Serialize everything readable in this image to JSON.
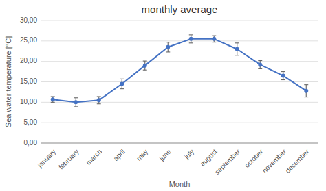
{
  "chart_data": {
    "type": "line",
    "title": "monthly average",
    "xlabel": "Month",
    "ylabel": "Sea water temperature [°C]",
    "categories": [
      "january",
      "february",
      "march",
      "april",
      "may",
      "june",
      "july",
      "august",
      "september",
      "october",
      "november",
      "december"
    ],
    "values": [
      10.7,
      10.0,
      10.5,
      14.5,
      19.0,
      23.5,
      25.5,
      25.5,
      23.0,
      19.2,
      16.5,
      12.8
    ],
    "errors": [
      0.7,
      1.1,
      0.9,
      1.2,
      1.1,
      1.2,
      1.0,
      0.8,
      1.5,
      1.0,
      1.0,
      1.5
    ],
    "color": "#4472C4",
    "marker": "circle",
    "ylim": [
      0,
      30
    ],
    "yticks": [
      {
        "value": 0,
        "label": "0,00"
      },
      {
        "value": 5,
        "label": "5,00"
      },
      {
        "value": 10,
        "label": "10,00"
      },
      {
        "value": 15,
        "label": "15,00"
      },
      {
        "value": 20,
        "label": "20,00"
      },
      {
        "value": 25,
        "label": "25,00"
      },
      {
        "value": 30,
        "label": "30,00"
      }
    ],
    "grid": true
  }
}
